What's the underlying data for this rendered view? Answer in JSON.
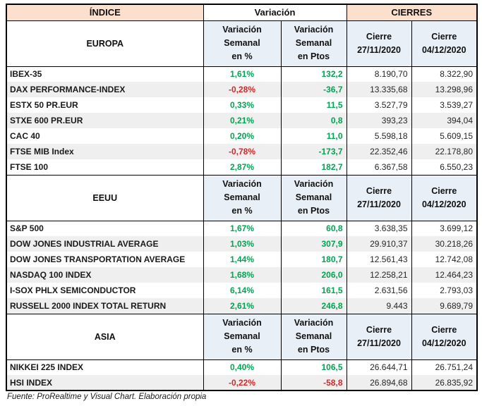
{
  "page": {
    "footer": "Fuente: ProRealtime y Visual Chart. Elaboración propia"
  },
  "colors": {
    "header_peach": "#FBE1CD",
    "subheader_blue": "#E9EFF7",
    "row_alt_gray": "#EFEFEF",
    "positive_green": "#00A651",
    "negative_red": "#DF2525",
    "border": "#000000"
  },
  "header": {
    "indice": "ÍNDICE",
    "variacion": "Variación",
    "cierres": "CIERRES"
  },
  "subheader": {
    "pct_lines": [
      "Variación",
      "Semanal",
      "en %"
    ],
    "ptos_lines": [
      "Variación",
      "Semanal",
      "en Ptos"
    ],
    "close1_lines": [
      "Cierre",
      "27/11/2020"
    ],
    "close2_lines": [
      "Cierre",
      "04/12/2020"
    ]
  },
  "chart_data": {
    "type": "table",
    "columns": [
      "ÍNDICE",
      "Variación Semanal en %",
      "Variación Semanal en Ptos",
      "Cierre 27/11/2020",
      "Cierre 04/12/2020"
    ],
    "sections": [
      {
        "name": "EUROPA",
        "rows": [
          {
            "name": "IBEX-35",
            "pct": "1,61%",
            "pct_color": "green",
            "ptos": "132,2",
            "ptos_color": "green",
            "close1": "8.190,70",
            "close2": "8.322,90"
          },
          {
            "name": "DAX PERFORMANCE-INDEX",
            "pct": "-0,28%",
            "pct_color": "red",
            "ptos": "-36,7",
            "ptos_color": "green",
            "close1": "13.335,68",
            "close2": "13.298,96"
          },
          {
            "name": "ESTX 50 PR.EUR",
            "pct": "0,33%",
            "pct_color": "green",
            "ptos": "11,5",
            "ptos_color": "green",
            "close1": "3.527,79",
            "close2": "3.539,27"
          },
          {
            "name": "STXE 600 PR.EUR",
            "pct": "0,21%",
            "pct_color": "green",
            "ptos": "0,8",
            "ptos_color": "green",
            "close1": "393,23",
            "close2": "394,04"
          },
          {
            "name": "CAC 40",
            "pct": "0,20%",
            "pct_color": "green",
            "ptos": "11,0",
            "ptos_color": "green",
            "close1": "5.598,18",
            "close2": "5.609,15"
          },
          {
            "name": "FTSE MIB Index",
            "pct": "-0,78%",
            "pct_color": "red",
            "ptos": "-173,7",
            "ptos_color": "green",
            "close1": "22.352,46",
            "close2": "22.178,80"
          },
          {
            "name": "FTSE 100",
            "pct": "2,87%",
            "pct_color": "green",
            "ptos": "182,7",
            "ptos_color": "green",
            "close1": "6.367,58",
            "close2": "6.550,23"
          }
        ]
      },
      {
        "name": "EEUU",
        "rows": [
          {
            "name": "S&P 500",
            "pct": "1,67%",
            "pct_color": "green",
            "ptos": "60,8",
            "ptos_color": "green",
            "close1": "3.638,35",
            "close2": "3.699,12"
          },
          {
            "name": "DOW JONES INDUSTRIAL AVERAGE",
            "pct": "1,03%",
            "pct_color": "green",
            "ptos": "307,9",
            "ptos_color": "green",
            "close1": "29.910,37",
            "close2": "30.218,26"
          },
          {
            "name": "DOW JONES TRANSPORTATION AVERAGE",
            "pct": "1,44%",
            "pct_color": "green",
            "ptos": "180,7",
            "ptos_color": "green",
            "close1": "12.561,43",
            "close2": "12.742,08"
          },
          {
            "name": "NASDAQ 100 INDEX",
            "pct": "1,68%",
            "pct_color": "green",
            "ptos": "206,0",
            "ptos_color": "green",
            "close1": "12.258,21",
            "close2": "12.464,23"
          },
          {
            "name": "I-SOX  PHLX SEMICONDUCTOR",
            "pct": "6,14%",
            "pct_color": "green",
            "ptos": "161,5",
            "ptos_color": "green",
            "close1": "2.631,56",
            "close2": "2.793,03"
          },
          {
            "name": "RUSSELL 2000 INDEX TOTAL RETURN",
            "pct": "2,61%",
            "pct_color": "green",
            "ptos": "246,8",
            "ptos_color": "green",
            "close1": "9.443",
            "close2": "9.689,79"
          }
        ]
      },
      {
        "name": "ASIA",
        "rows": [
          {
            "name": "NIKKEI 225 INDEX",
            "pct": "0,40%",
            "pct_color": "green",
            "ptos": "106,5",
            "ptos_color": "green",
            "close1": "26.644,71",
            "close2": "26.751,24"
          },
          {
            "name": "HSI INDEX",
            "pct": "-0,22%",
            "pct_color": "red",
            "ptos": "-58,8",
            "ptos_color": "red",
            "close1": "26.894,68",
            "close2": "26.835,92"
          }
        ]
      }
    ]
  }
}
